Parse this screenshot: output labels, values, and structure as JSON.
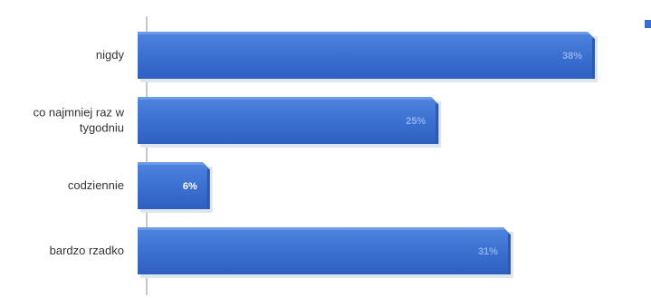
{
  "chart_data": {
    "type": "bar",
    "orientation": "horizontal",
    "categories": [
      "nigdy",
      "co najmniej raz w tygodniu",
      "codziennie",
      "bardzo rzadko"
    ],
    "category_lines": [
      [
        "nigdy"
      ],
      [
        "co najmniej raz w",
        "tygodniu"
      ],
      [
        "codziennie"
      ],
      [
        "bardzo rzadko"
      ]
    ],
    "series": [
      {
        "values": [
          38,
          25,
          6,
          31
        ],
        "labels": [
          "38%",
          "25%",
          "6%",
          "31%"
        ],
        "color": "#3a6fd0"
      }
    ],
    "xlim": [
      0,
      38
    ],
    "unit": "%",
    "title": "",
    "xlabel": "",
    "ylabel": "",
    "legend": {
      "position": "top-right",
      "color": "#3a6fd0"
    },
    "label_colors": [
      "#8fb0ea",
      "#8fb0ea",
      "#ffffff",
      "#8fb0ea"
    ],
    "grid": false
  }
}
